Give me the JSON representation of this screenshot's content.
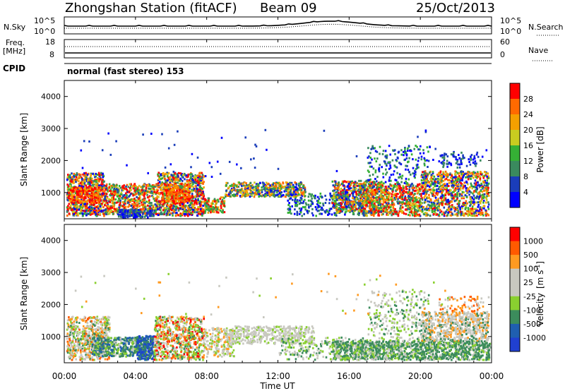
{
  "header": {
    "station": "Zhongshan Station (fitACF)",
    "beam": "Beam 09",
    "date": "25/Oct/2013"
  },
  "sky_panel": {
    "left_label": "N.Sky",
    "right_label": "N.Search",
    "left_ticks": [
      "10^5",
      "10^0"
    ],
    "right_ticks": [
      "10^5",
      "10^0"
    ]
  },
  "freq_panel": {
    "left_label_1": "Freq.",
    "left_label_2": "[MHz]",
    "right_label": "Nave",
    "left_ticks": [
      "18",
      "8"
    ],
    "right_ticks": [
      "60",
      "0"
    ]
  },
  "cpid": {
    "label": "CPID",
    "value": "normal (fast stereo) 153"
  },
  "colors": {
    "power": [
      "#0000ff",
      "#1a3dba",
      "#3a8a5e",
      "#35b035",
      "#c8cc20",
      "#f5a000",
      "#ff6a00",
      "#ff0000"
    ],
    "velocity": [
      "#ff0000",
      "#ff5a00",
      "#ff9a20",
      "#c8c8c0",
      "#c8c8c0",
      "#8ad030",
      "#3c8c5c",
      "#1f5fb0",
      "#2040d0"
    ]
  },
  "chart_data": [
    {
      "type": "heatmap",
      "panel": "power",
      "ylabel": "Slant Range [km]",
      "ylim": [
        180,
        4500
      ],
      "yticks": [
        1000,
        2000,
        3000,
        4000
      ],
      "xlim": [
        0,
        24
      ],
      "colorbar": {
        "title": "Power [dB]",
        "ticks": [
          "4",
          "8",
          "12",
          "16",
          "20",
          "24",
          "28"
        ]
      }
    },
    {
      "type": "heatmap",
      "panel": "velocity",
      "ylabel": "Slant Range [km]",
      "ylim": [
        180,
        4500
      ],
      "yticks": [
        1000,
        2000,
        3000,
        4000
      ],
      "xlim": [
        0,
        24
      ],
      "xticks": [
        "00:00",
        "04:00",
        "08:00",
        "12:00",
        "16:00",
        "20:00",
        "00:00"
      ],
      "xlabel": "Time UT",
      "colorbar": {
        "title": "Velocity",
        "unit_base": "[m s",
        "unit_sup": "-1",
        "unit_close": "]",
        "ticks": [
          "1000",
          "500",
          "100",
          "25",
          "-25",
          "-100",
          "-500",
          "-1000"
        ]
      }
    }
  ]
}
